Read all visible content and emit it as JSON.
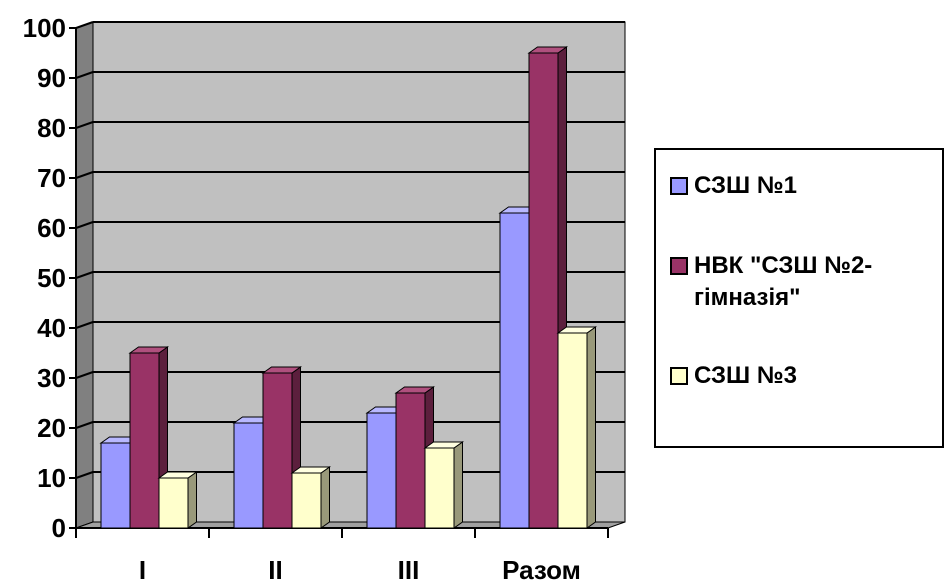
{
  "chart_data": {
    "type": "bar",
    "categories": [
      "I",
      "II",
      "III",
      "Разом"
    ],
    "series": [
      {
        "name": "СЗШ №1",
        "values": [
          17,
          21,
          23,
          63
        ]
      },
      {
        "name": "НВК \"СЗШ №2-гімназія\"",
        "values": [
          35,
          31,
          27,
          95
        ]
      },
      {
        "name": "СЗШ №3",
        "values": [
          10,
          11,
          16,
          39
        ]
      }
    ],
    "ylim": [
      0,
      100
    ],
    "yticks": [
      "0",
      "10",
      "20",
      "30",
      "40",
      "50",
      "60",
      "70",
      "80",
      "90",
      "100"
    ],
    "grid": true,
    "legend_position": "right",
    "colors": {
      "series": [
        "#9999ff",
        "#993366",
        "#ffffcc"
      ],
      "series_top": [
        "#b8b8ff",
        "#b0507e",
        "#ffffe0"
      ],
      "series_side": [
        "#5c5c99",
        "#5c1f3d",
        "#99997a"
      ],
      "plot_back": "#c0c0c0",
      "plot_side": "#808080",
      "floor": "#a0a0a0"
    }
  },
  "legend": {
    "items": [
      {
        "label": "СЗШ №1",
        "color": "#9999ff"
      },
      {
        "label": "НВК \"СЗШ №2-гімназія\"",
        "color": "#993366"
      },
      {
        "label": "СЗШ №3",
        "color": "#ffffcc"
      }
    ]
  }
}
